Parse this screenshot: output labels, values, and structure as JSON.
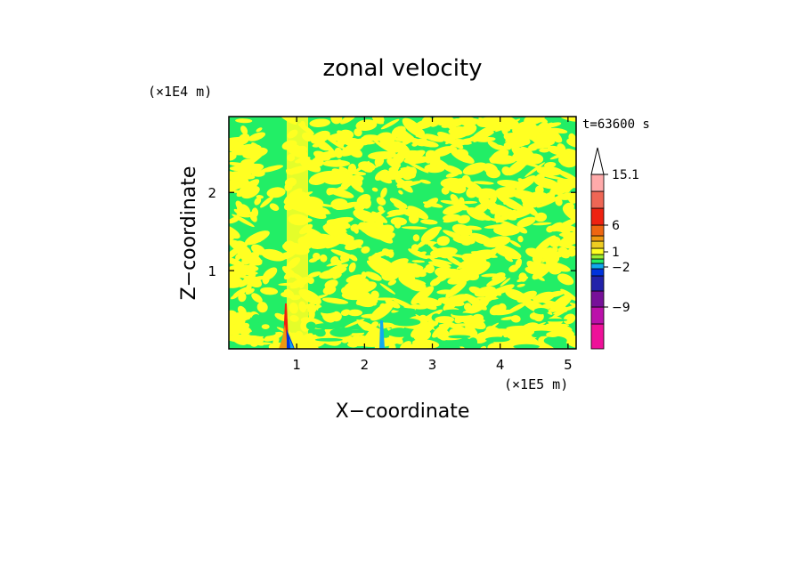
{
  "chart_data": {
    "type": "heatmap",
    "title": "zonal velocity",
    "xlabel": "X−coordinate",
    "ylabel": "Z−coordinate",
    "x_scale_label": "(×1E5 m)",
    "y_scale_label": "(×1E4 m)",
    "time_label": "t=63600 s",
    "xlim": [
      0,
      5.12
    ],
    "ylim": [
      0,
      2.97
    ],
    "x_ticks": [
      1,
      2,
      3,
      4,
      5
    ],
    "x_tick_labels": [
      "1",
      "2",
      "3",
      "4",
      "5"
    ],
    "y_ticks": [
      1,
      2
    ],
    "y_tick_labels": [
      "1",
      "2"
    ],
    "colorbar": {
      "levels_bottom_to_top": [
        {
          "color": "#ee1199"
        },
        {
          "color": "#bb11aa"
        },
        {
          "color": "#771199"
        },
        {
          "color": "#2222aa"
        },
        {
          "color": "#0033dd"
        },
        {
          "color": "#11aaee"
        },
        {
          "color": "#22ee66"
        },
        {
          "color": "#99ee33"
        },
        {
          "color": "#ffff22"
        },
        {
          "color": "#eecc22"
        },
        {
          "color": "#ee9911"
        },
        {
          "color": "#ee6611"
        },
        {
          "color": "#ee2211"
        },
        {
          "color": "#ee6655"
        },
        {
          "color": "#ffaaaa"
        },
        {
          "color": "#ffdddd"
        }
      ],
      "tick_labels": [
        {
          "label": "15.1",
          "value": 15.1
        },
        {
          "label": "6",
          "value": 6
        },
        {
          "label": "1",
          "value": 1
        },
        {
          "label": "−2",
          "value": -2
        },
        {
          "label": "−9",
          "value": -9
        }
      ]
    },
    "dominant_field_colors": {
      "negative_small": "#22ee66",
      "positive_small": "#ffff22"
    },
    "grid": false
  }
}
